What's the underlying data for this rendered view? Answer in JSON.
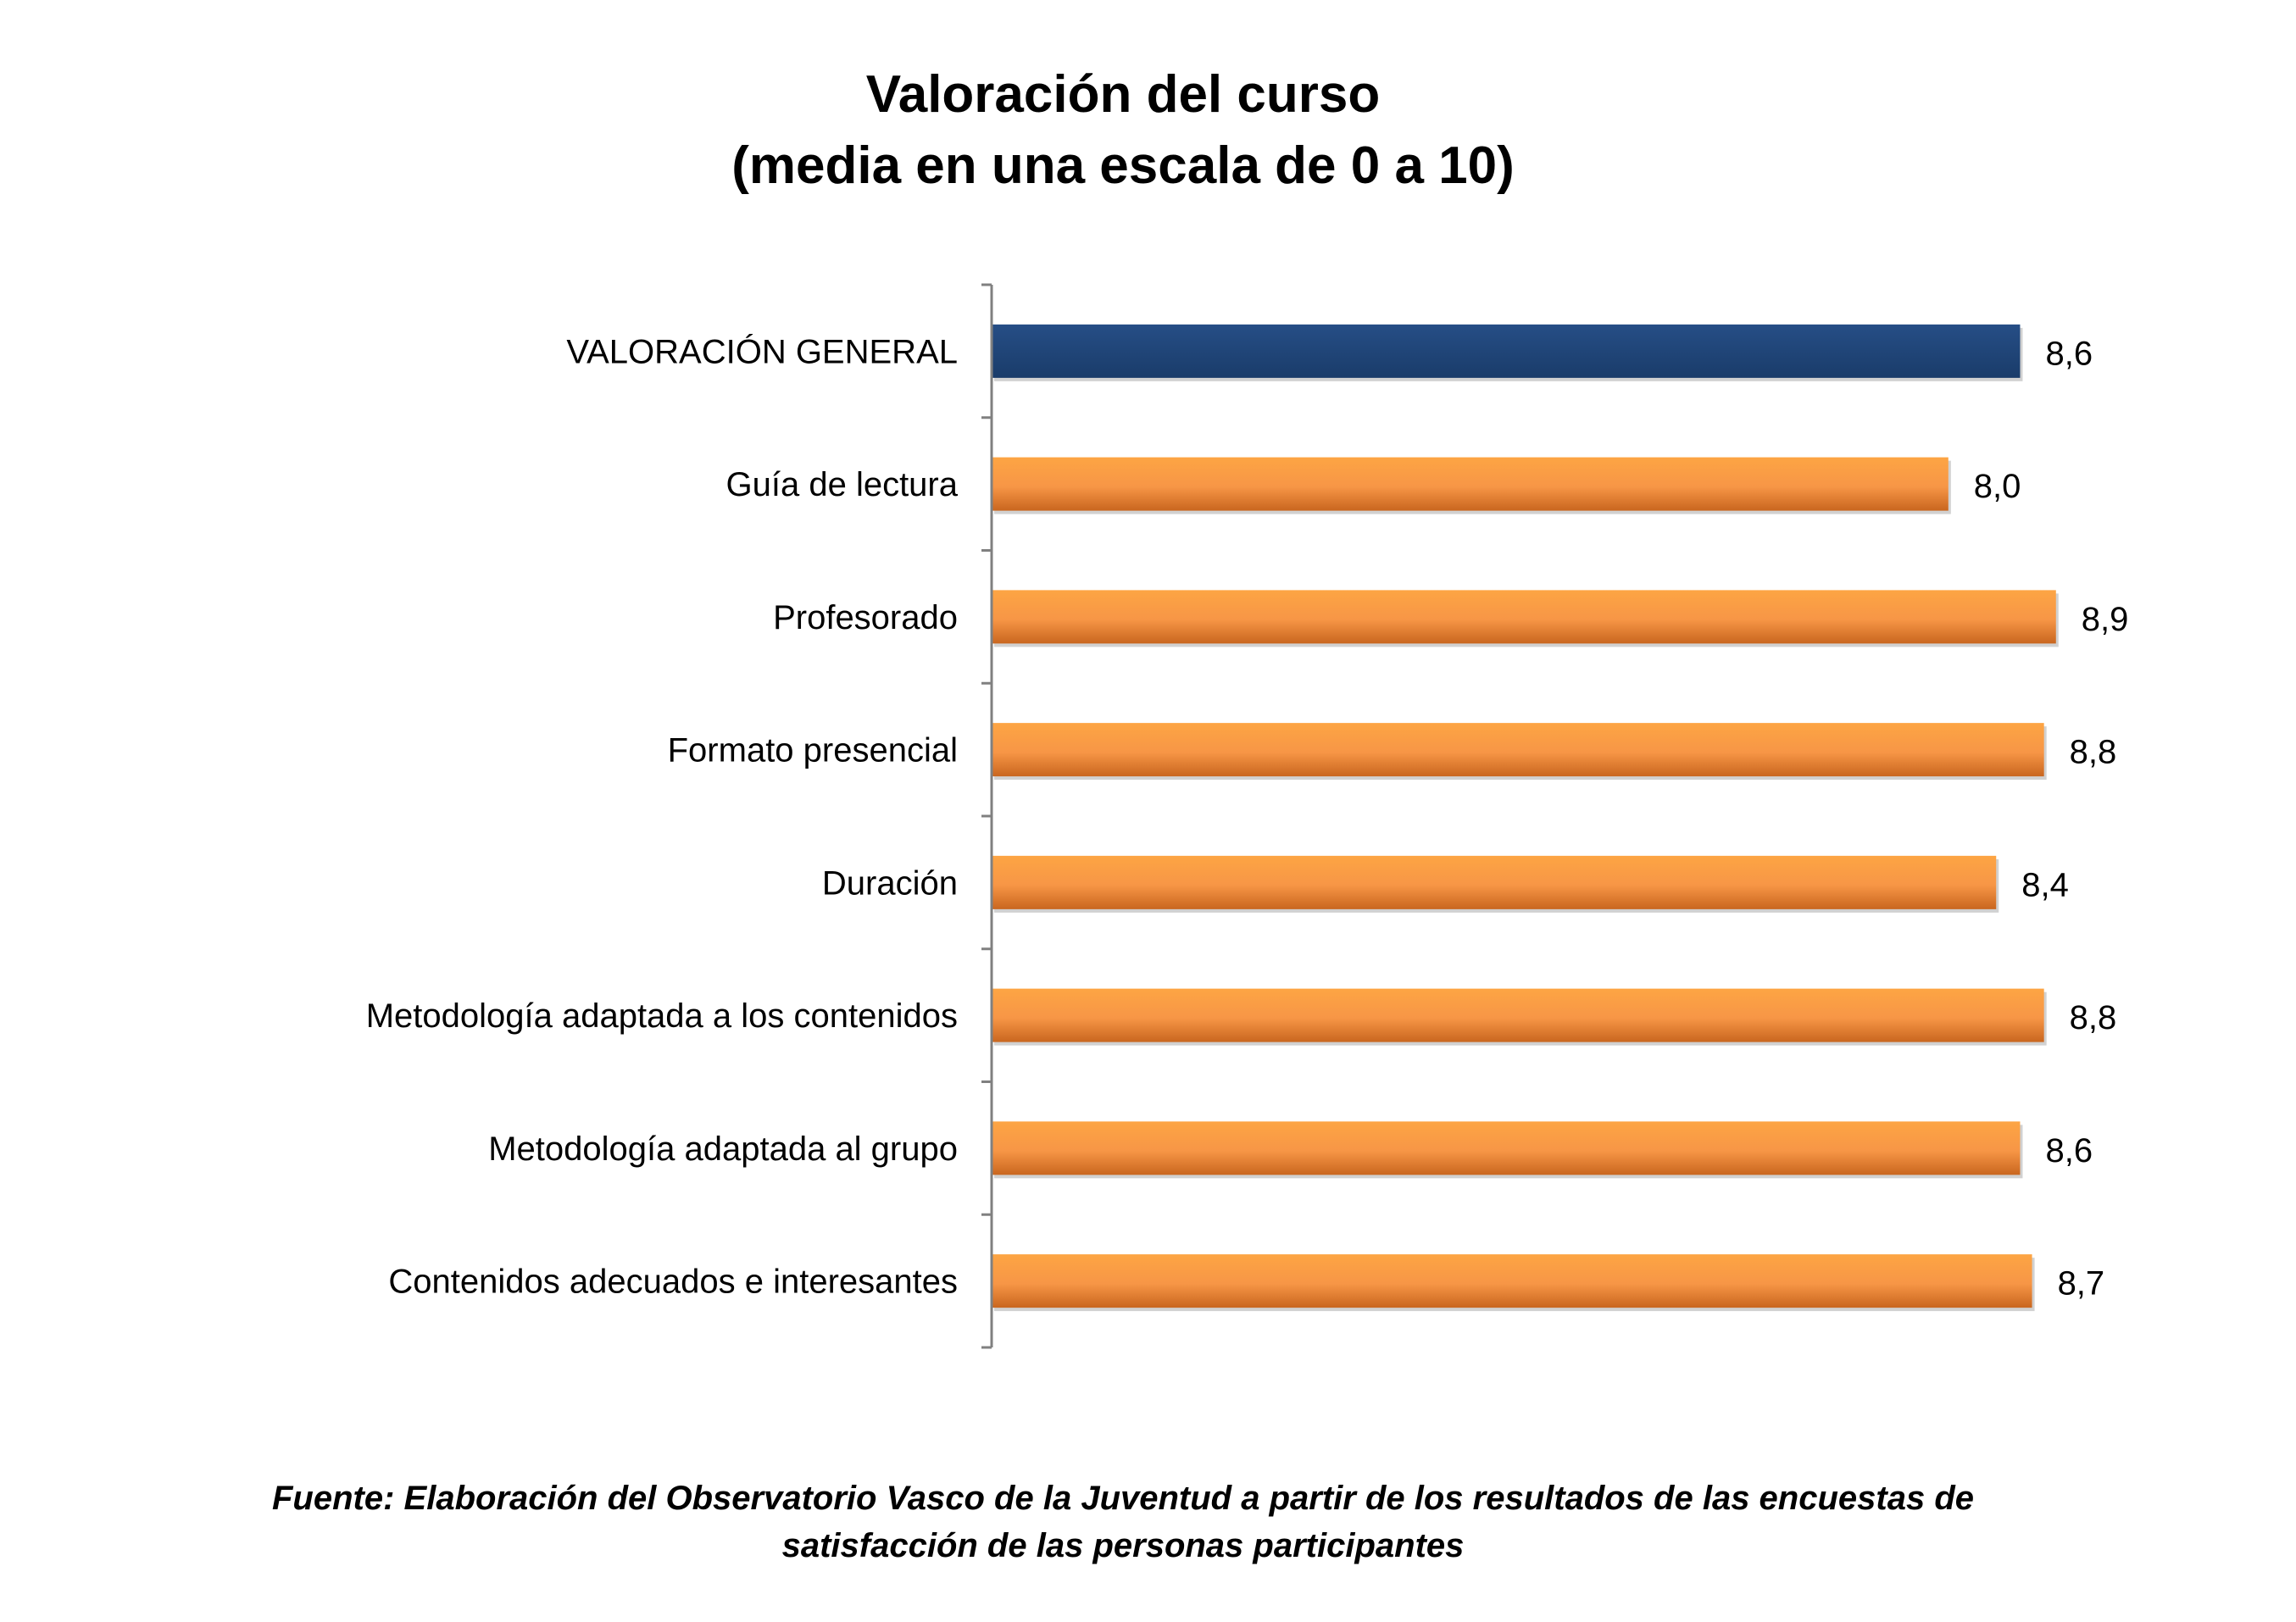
{
  "chart_data": {
    "type": "bar",
    "orientation": "horizontal",
    "title": "Valoración del curso",
    "subtitle": "(media en una escala de 0 a 10)",
    "categories": [
      "VALORACIÓN GENERAL",
      "Guía de lectura",
      "Profesorado",
      "Formato presencial",
      "Duración",
      "Metodología adaptada a los contenidos",
      "Metodología adaptada al grupo",
      "Contenidos adecuados e interesantes"
    ],
    "values": [
      8.6,
      8.0,
      8.9,
      8.8,
      8.4,
      8.8,
      8.6,
      8.7
    ],
    "value_labels": [
      "8,6",
      "8,0",
      "8,9",
      "8,8",
      "8,4",
      "8,8",
      "8,6",
      "8,7"
    ],
    "xlim": [
      0,
      10
    ],
    "grid": false,
    "legend": "none",
    "colors": {
      "highlight": "#1F497D",
      "default": "#F79646"
    }
  },
  "source": {
    "line1": "Fuente: Elaboración del Observatorio Vasco de la Juventud a partir de los resultados de las encuestas de",
    "line2": "satisfacción de las personas participantes"
  }
}
